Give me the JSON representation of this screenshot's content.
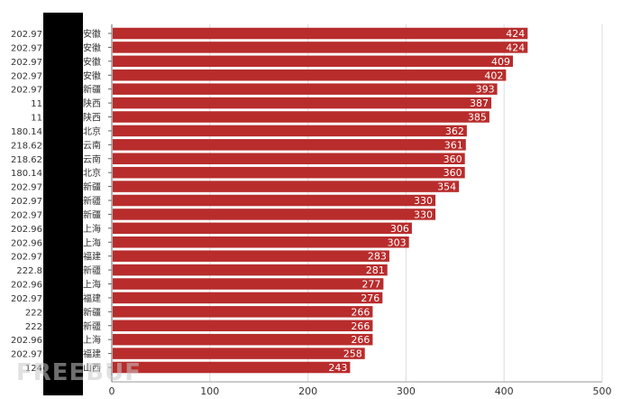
{
  "chart_data": {
    "type": "bar",
    "orientation": "horizontal",
    "title": "",
    "xlabel": "",
    "ylabel": "",
    "xlim": [
      0,
      500
    ],
    "x_ticks": [
      "0",
      "100",
      "200",
      "300",
      "400",
      "500"
    ],
    "grid": "vertical",
    "bar_color": "#b82c2c",
    "value_label_color": "#ffffff",
    "categories": [
      {
        "ip": "202.97",
        "region": "安徽"
      },
      {
        "ip": "202.97",
        "region": "安徽"
      },
      {
        "ip": "202.97",
        "region": "安徽"
      },
      {
        "ip": "202.97",
        "region": "安徽"
      },
      {
        "ip": "202.97",
        "region": "新疆"
      },
      {
        "ip": "11",
        "region": "陕西"
      },
      {
        "ip": "11",
        "region": "陕西"
      },
      {
        "ip": "180.14",
        "region": "北京"
      },
      {
        "ip": "218.62",
        "region": "云南"
      },
      {
        "ip": "218.62",
        "region": "云南"
      },
      {
        "ip": "180.14",
        "region": "北京"
      },
      {
        "ip": "202.97",
        "region": "新疆"
      },
      {
        "ip": "202.97",
        "region": "新疆"
      },
      {
        "ip": "202.97",
        "region": "新疆"
      },
      {
        "ip": "202.96",
        "region": "上海"
      },
      {
        "ip": "202.96",
        "region": "上海"
      },
      {
        "ip": "202.97",
        "region": "福建"
      },
      {
        "ip": "222.8",
        "region": "新疆"
      },
      {
        "ip": "202.96",
        "region": "上海"
      },
      {
        "ip": "202.97",
        "region": "福建"
      },
      {
        "ip": "222",
        "region": "新疆"
      },
      {
        "ip": "222",
        "region": "新疆"
      },
      {
        "ip": "202.96",
        "region": "上海"
      },
      {
        "ip": "202.97",
        "region": "福建"
      },
      {
        "ip": "124",
        "region": "山西"
      }
    ],
    "values": [
      424,
      424,
      409,
      402,
      393,
      387,
      385,
      362,
      361,
      360,
      360,
      354,
      330,
      330,
      306,
      303,
      283,
      281,
      277,
      276,
      266,
      266,
      266,
      258,
      243
    ]
  },
  "watermark": "FREEBUF"
}
